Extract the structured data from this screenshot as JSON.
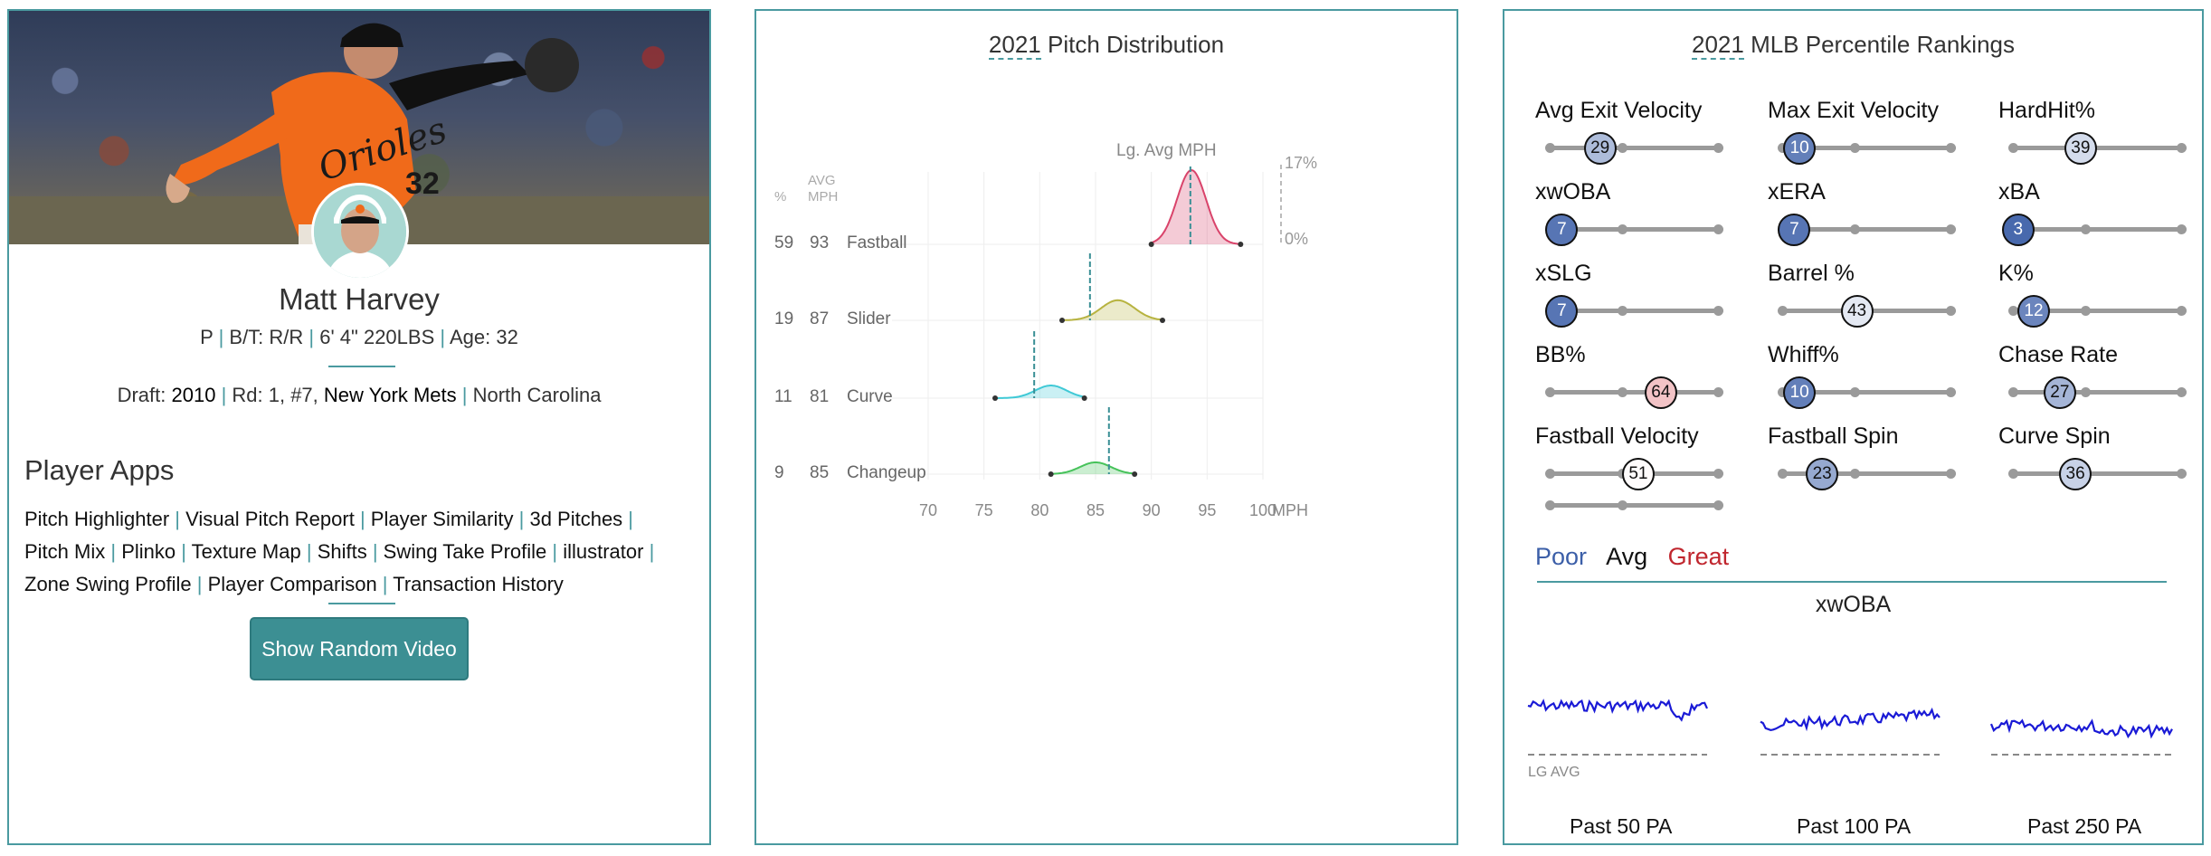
{
  "player": {
    "name": "Matt Harvey",
    "position": "P",
    "bt": "B/T: R/R",
    "size": "6' 4\" 220LBS",
    "age": "Age: 32",
    "jersey_text": "Orioles",
    "jersey_number": "32",
    "draft_label": "Draft:",
    "draft_year": "2010",
    "draft_round": "Rd: 1, #7,",
    "draft_team": "New York Mets",
    "school": "North Carolina"
  },
  "apps": {
    "title": "Player Apps",
    "items": [
      "Pitch Highlighter",
      "Visual Pitch Report",
      "Player Similarity",
      "3d Pitches",
      "Pitch Mix",
      "Plinko",
      "Texture Map",
      "Shifts",
      "Swing Take Profile",
      "illustrator",
      "Zone Swing Profile",
      "Player Comparison",
      "Transaction History"
    ],
    "button": "Show Random Video"
  },
  "pitch": {
    "title_year": "2021",
    "title_rest": " Pitch Distribution",
    "lg_avg_label": "Lg. Avg MPH",
    "col_pct": "%",
    "col_avg": "AVG",
    "col_mph": "MPH",
    "scale_max": "17%",
    "scale_min": "0%",
    "axis_unit": "MPH",
    "colors": {
      "Fastball": "#d9436a",
      "Slider": "#b7b340",
      "Curve": "#3fc9d6",
      "Changeup": "#46c25a"
    }
  },
  "chart_data": {
    "type": "area",
    "x": [
      70,
      75,
      80,
      85,
      90,
      95,
      100
    ],
    "xlim": [
      70,
      100
    ],
    "xlabel": "MPH",
    "ylim": [
      0,
      17
    ],
    "series": [
      {
        "name": "Fastball",
        "pct": 59,
        "avg": 93,
        "lg_avg": 93.5,
        "range": [
          90,
          98
        ],
        "peak": 17,
        "sd": 1.3
      },
      {
        "name": "Slider",
        "pct": 19,
        "avg": 87,
        "lg_avg": 84.5,
        "range": [
          82,
          91
        ],
        "peak": 4.6,
        "sd": 1.5
      },
      {
        "name": "Curve",
        "pct": 11,
        "avg": 81,
        "lg_avg": 79.5,
        "range": [
          76,
          84
        ],
        "peak": 2.9,
        "sd": 1.4
      },
      {
        "name": "Changeup",
        "pct": 9,
        "avg": 85,
        "lg_avg": 86.2,
        "range": [
          81,
          88.5
        ],
        "peak": 2.7,
        "sd": 1.4
      }
    ]
  },
  "rankings": {
    "title_year": "2021",
    "title_rest": " MLB Percentile Rankings",
    "metrics": [
      {
        "label": "Avg Exit Velocity",
        "value": 29
      },
      {
        "label": "Max Exit Velocity",
        "value": 10
      },
      {
        "label": "HardHit%",
        "value": 39
      },
      {
        "label": "xwOBA",
        "value": 7
      },
      {
        "label": "xERA",
        "value": 7
      },
      {
        "label": "xBA",
        "value": 3
      },
      {
        "label": "xSLG",
        "value": 7
      },
      {
        "label": "Barrel %",
        "value": 43
      },
      {
        "label": "K%",
        "value": 12
      },
      {
        "label": "BB%",
        "value": 64
      },
      {
        "label": "Whiff%",
        "value": 10
      },
      {
        "label": "Chase Rate",
        "value": 27
      },
      {
        "label": "Fastball Velocity",
        "value": 51
      },
      {
        "label": "Fastball Spin",
        "value": 23
      },
      {
        "label": "Curve Spin",
        "value": 36
      }
    ],
    "legend": {
      "poor": "Poor",
      "avg": "Avg",
      "great": "Great"
    },
    "legend_colors": {
      "poor": "#3c5fa8",
      "avg": "#111111",
      "great": "#c0262e"
    },
    "trend_title": "xwOBA",
    "lg_avg_label": "LG AVG",
    "windows": [
      "Past 50 PA",
      "Past 100 PA",
      "Past 250 PA"
    ]
  }
}
